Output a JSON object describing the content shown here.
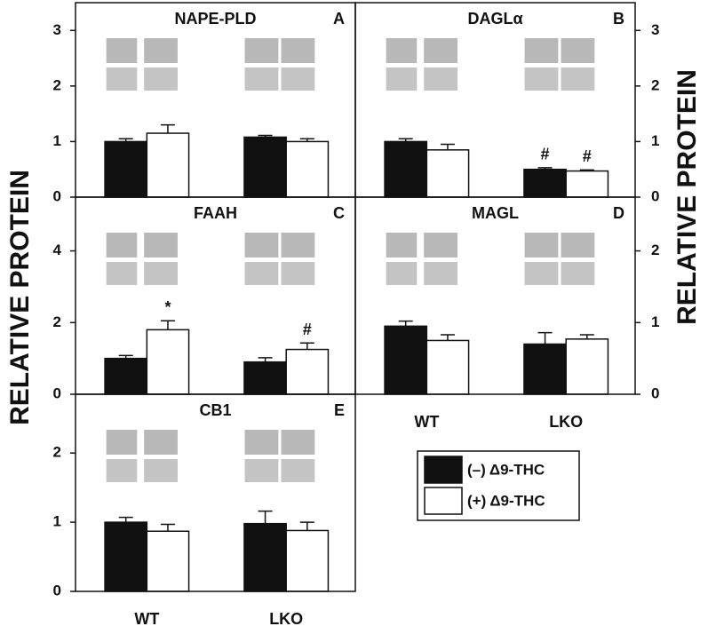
{
  "chart_data": [
    {
      "type": "bar",
      "title": "NAPE-PLD",
      "label": "A",
      "ylabel": "RELATIVE PROTEIN",
      "yaxis_position": "left",
      "ylim": [
        0,
        3.5
      ],
      "yticks": [
        0,
        1,
        2,
        3
      ],
      "series": [
        {
          "name": "(–) Δ9-THC",
          "color": "#111111",
          "values": [
            1.0,
            1.08
          ],
          "errors": [
            0.05,
            0.03
          ],
          "markers": [
            null,
            null
          ]
        },
        {
          "name": "(+) Δ9-THC",
          "color": "#ffffff",
          "values": [
            1.15,
            1.0
          ],
          "errors": [
            0.15,
            0.05
          ],
          "markers": [
            null,
            null
          ]
        }
      ]
    },
    {
      "type": "bar",
      "title": "DAGLα",
      "label": "B",
      "ylabel": "RELATIVE PROTEIN",
      "yaxis_position": "right",
      "ylim": [
        0,
        3.5
      ],
      "yticks": [
        0,
        1,
        2,
        3
      ],
      "series": [
        {
          "name": "(–) Δ9-THC",
          "color": "#111111",
          "values": [
            1.0,
            0.5
          ],
          "errors": [
            0.05,
            0.03
          ],
          "markers": [
            null,
            "#"
          ]
        },
        {
          "name": "(+) Δ9-THC",
          "color": "#ffffff",
          "values": [
            0.85,
            0.47
          ],
          "errors": [
            0.1,
            0.02
          ],
          "markers": [
            null,
            "#"
          ]
        }
      ]
    },
    {
      "type": "bar",
      "title": "FAAH",
      "label": "C",
      "yaxis_position": "left",
      "ylim": [
        0,
        5.5
      ],
      "yticks": [
        0,
        2,
        4
      ],
      "series": [
        {
          "name": "(–) Δ9-THC",
          "color": "#111111",
          "values": [
            1.0,
            0.9
          ],
          "errors": [
            0.08,
            0.12
          ],
          "markers": [
            null,
            null
          ]
        },
        {
          "name": "(+) Δ9-THC",
          "color": "#ffffff",
          "values": [
            1.8,
            1.25
          ],
          "errors": [
            0.25,
            0.18
          ],
          "markers": [
            "*",
            "#"
          ]
        }
      ]
    },
    {
      "type": "bar",
      "title": "MAGL",
      "label": "D",
      "yaxis_position": "right",
      "legend": "below",
      "categories": [
        "WT",
        "LKO"
      ],
      "ylim": [
        0,
        2.75
      ],
      "yticks": [
        0,
        1,
        2
      ],
      "series": [
        {
          "name": "(–) Δ9-THC",
          "color": "#111111",
          "values": [
            0.95,
            0.7
          ],
          "errors": [
            0.07,
            0.16
          ],
          "markers": [
            null,
            null
          ]
        },
        {
          "name": "(+) Δ9-THC",
          "color": "#ffffff",
          "values": [
            0.75,
            0.77
          ],
          "errors": [
            0.08,
            0.06
          ],
          "markers": [
            null,
            null
          ]
        }
      ]
    },
    {
      "type": "bar",
      "title": "CB1",
      "label": "E",
      "yaxis_position": "left",
      "categories": [
        "WT",
        "LKO"
      ],
      "ylim": [
        0,
        2.85
      ],
      "yticks": [
        0,
        1,
        2
      ],
      "series": [
        {
          "name": "(–) Δ9-THC",
          "color": "#111111",
          "values": [
            1.0,
            0.98
          ],
          "errors": [
            0.07,
            0.18
          ],
          "markers": [
            null,
            null
          ]
        },
        {
          "name": "(+) Δ9-THC",
          "color": "#ffffff",
          "values": [
            0.87,
            0.88
          ],
          "errors": [
            0.1,
            0.12
          ],
          "markers": [
            null,
            null
          ]
        }
      ]
    }
  ]
}
